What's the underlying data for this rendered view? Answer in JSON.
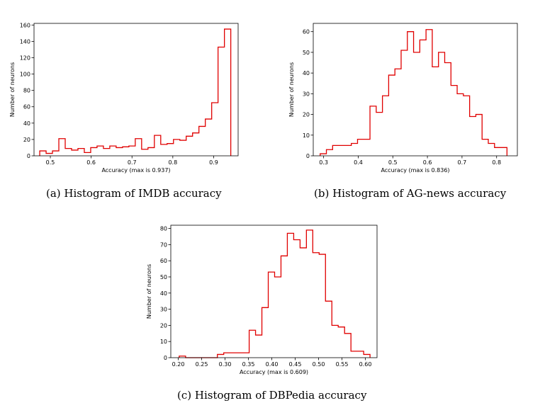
{
  "chart_data": [
    {
      "type": "histogram",
      "caption": "(a) Histogram of IMDB accuracy",
      "xlabel": "Accuracy (max is 0.937)",
      "ylabel": "Number of neurons",
      "xlim": [
        0.46,
        0.96
      ],
      "ylim": [
        0,
        162
      ],
      "xticks": [
        0.5,
        0.6,
        0.7,
        0.8,
        0.9
      ],
      "xtick_labels": [
        "0.5",
        "0.6",
        "0.7",
        "0.8",
        "0.9"
      ],
      "yticks": [
        0,
        20,
        40,
        60,
        80,
        100,
        120,
        140,
        160
      ],
      "ytick_labels": [
        "0",
        "20",
        "40",
        "60",
        "80",
        "100",
        "120",
        "140",
        "160"
      ],
      "color": "#e00000",
      "bin_edges": [
        0.474,
        0.4896,
        0.5052,
        0.5208,
        0.5364,
        0.552,
        0.5676,
        0.5832,
        0.5988,
        0.6144,
        0.63,
        0.6456,
        0.6612,
        0.6768,
        0.6924,
        0.708,
        0.7236,
        0.7392,
        0.7548,
        0.7704,
        0.786,
        0.8016,
        0.8172,
        0.8328,
        0.8484,
        0.864,
        0.8796,
        0.8952,
        0.9108,
        0.9264,
        0.942
      ],
      "counts": [
        6,
        3,
        6,
        21,
        9,
        7,
        9,
        4,
        10,
        12,
        9,
        12,
        10,
        11,
        12,
        21,
        8,
        10,
        25,
        14,
        15,
        20,
        19,
        24,
        28,
        36,
        45,
        65,
        133,
        155
      ]
    },
    {
      "type": "histogram",
      "caption": "(b) Histogram of AG-news accuracy",
      "xlabel": "Accuracy (max is 0.836)",
      "ylabel": "Number of neurons",
      "xlim": [
        0.27,
        0.86
      ],
      "ylim": [
        0,
        64
      ],
      "xticks": [
        0.3,
        0.4,
        0.5,
        0.6,
        0.7,
        0.8
      ],
      "xtick_labels": [
        "0.3",
        "0.4",
        "0.5",
        "0.6",
        "0.7",
        "0.8"
      ],
      "yticks": [
        0,
        10,
        20,
        30,
        40,
        50,
        60
      ],
      "ytick_labels": [
        "0",
        "10",
        "20",
        "30",
        "40",
        "50",
        "60"
      ],
      "color": "#e00000",
      "bin_edges": [
        0.29,
        0.308,
        0.326,
        0.344,
        0.362,
        0.38,
        0.398,
        0.416,
        0.434,
        0.452,
        0.47,
        0.488,
        0.506,
        0.524,
        0.542,
        0.56,
        0.578,
        0.596,
        0.614,
        0.632,
        0.65,
        0.668,
        0.686,
        0.704,
        0.722,
        0.74,
        0.758,
        0.776,
        0.794,
        0.812,
        0.83
      ],
      "counts": [
        1,
        3,
        5,
        5,
        5,
        6,
        8,
        8,
        24,
        21,
        29,
        39,
        42,
        51,
        60,
        50,
        56,
        61,
        43,
        50,
        45,
        34,
        30,
        29,
        19,
        20,
        8,
        6,
        4,
        4
      ]
    },
    {
      "type": "histogram",
      "caption": "(c) Histogram of DBPedia accuracy",
      "xlabel": "Accuracy (max is 0.609)",
      "ylabel": "Number of neurons",
      "xlim": [
        0.184,
        0.625
      ],
      "ylim": [
        0,
        82
      ],
      "xticks": [
        0.2,
        0.25,
        0.3,
        0.35,
        0.4,
        0.45,
        0.5,
        0.55,
        0.6
      ],
      "xtick_labels": [
        "0.20",
        "0.25",
        "0.30",
        "0.35",
        "0.40",
        "0.45",
        "0.50",
        "0.55",
        "0.60"
      ],
      "yticks": [
        0,
        10,
        20,
        30,
        40,
        50,
        60,
        70,
        80
      ],
      "ytick_labels": [
        "0",
        "10",
        "20",
        "30",
        "40",
        "50",
        "60",
        "70",
        "80"
      ],
      "color": "#e00000",
      "bin_edges": [
        0.202,
        0.2156,
        0.2292,
        0.2428,
        0.2564,
        0.27,
        0.2836,
        0.2972,
        0.3108,
        0.3244,
        0.338,
        0.3516,
        0.3652,
        0.3788,
        0.3924,
        0.406,
        0.4196,
        0.4332,
        0.4468,
        0.4604,
        0.474,
        0.4876,
        0.5012,
        0.5148,
        0.5284,
        0.542,
        0.5556,
        0.5692,
        0.5828,
        0.5964,
        0.61
      ],
      "counts": [
        1,
        0,
        0,
        0,
        0,
        0,
        2,
        3,
        3,
        3,
        3,
        17,
        14,
        31,
        53,
        50,
        63,
        77,
        73,
        68,
        79,
        65,
        64,
        35,
        20,
        19,
        15,
        4,
        4,
        2
      ]
    }
  ]
}
